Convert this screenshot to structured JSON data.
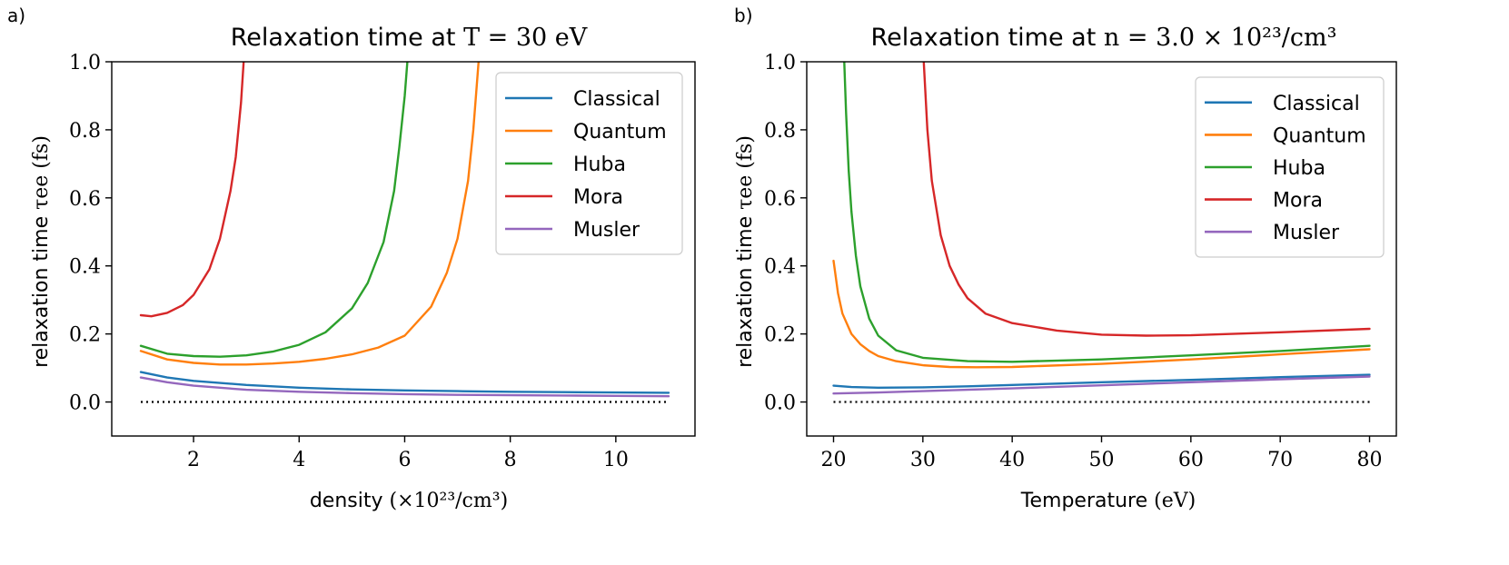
{
  "panels": [
    {
      "panel_label": "a)",
      "title_prefix": "Relaxation time at ",
      "title_math": "T = 30 eV",
      "xlabel_prefix": "density ",
      "xlabel_math": "(×10²³/cm³)",
      "ylabel_prefix": "relaxation time ",
      "ylabel_math": "τee (fs)"
    },
    {
      "panel_label": "b)",
      "title_prefix": "Relaxation time at ",
      "title_math": "n = 3.0 × 10²³/cm³",
      "xlabel_prefix": "Temperature ",
      "xlabel_math": "(eV)",
      "ylabel_prefix": "relaxation time ",
      "ylabel_math": "τee (fs)"
    }
  ],
  "colors": {
    "Classical": "#1f77b4",
    "Quantum": "#ff7f0e",
    "Huba": "#2ca02c",
    "Mora": "#d62728",
    "Musler": "#9467bd",
    "reference": "#000000"
  },
  "chart_data": [
    {
      "type": "line",
      "title": "Relaxation time at T = 30 eV",
      "xlabel": "density (×10²³/cm³)",
      "ylabel": "relaxation time τee (fs)",
      "xlim": [
        0.45,
        11.5
      ],
      "ylim": [
        -0.1,
        1.0
      ],
      "xticks": [
        2,
        4,
        6,
        8,
        10
      ],
      "xtick_labels": [
        "2",
        "4",
        "6",
        "8",
        "10"
      ],
      "yticks": [
        0.0,
        0.2,
        0.4,
        0.6,
        0.8,
        1.0
      ],
      "ytick_labels": [
        "0.0",
        "0.2",
        "0.4",
        "0.6",
        "0.8",
        "1.0"
      ],
      "grid": false,
      "legend": "top-right",
      "legend_entries": [
        "Classical",
        "Quantum",
        "Huba",
        "Mora",
        "Musler"
      ],
      "series": [
        {
          "name": "Classical",
          "x": [
            1.0,
            1.5,
            2,
            3,
            4,
            5,
            6,
            7,
            8,
            9,
            10,
            11
          ],
          "y": [
            0.088,
            0.072,
            0.062,
            0.05,
            0.042,
            0.037,
            0.034,
            0.032,
            0.03,
            0.029,
            0.028,
            0.027
          ]
        },
        {
          "name": "Quantum",
          "x": [
            1.0,
            1.5,
            2,
            2.5,
            3,
            3.5,
            4,
            4.5,
            5,
            5.5,
            6,
            6.5,
            6.8,
            7.0,
            7.2,
            7.3,
            7.4
          ],
          "y": [
            0.15,
            0.125,
            0.115,
            0.11,
            0.11,
            0.113,
            0.118,
            0.127,
            0.14,
            0.16,
            0.195,
            0.28,
            0.38,
            0.48,
            0.65,
            0.8,
            1.0
          ]
        },
        {
          "name": "Huba",
          "x": [
            1.0,
            1.5,
            2,
            2.5,
            3,
            3.5,
            4,
            4.5,
            5,
            5.3,
            5.6,
            5.8,
            5.9,
            6.0,
            6.05
          ],
          "y": [
            0.165,
            0.142,
            0.135,
            0.133,
            0.137,
            0.148,
            0.168,
            0.205,
            0.275,
            0.35,
            0.47,
            0.62,
            0.75,
            0.9,
            1.0
          ]
        },
        {
          "name": "Mora",
          "x": [
            1.0,
            1.2,
            1.5,
            1.8,
            2.0,
            2.3,
            2.5,
            2.7,
            2.8,
            2.9,
            2.95
          ],
          "y": [
            0.255,
            0.252,
            0.262,
            0.285,
            0.315,
            0.39,
            0.48,
            0.62,
            0.72,
            0.88,
            1.0
          ]
        },
        {
          "name": "Musler",
          "x": [
            1.0,
            1.5,
            2,
            3,
            4,
            5,
            6,
            7,
            8,
            9,
            10,
            11
          ],
          "y": [
            0.072,
            0.058,
            0.048,
            0.036,
            0.03,
            0.026,
            0.023,
            0.021,
            0.02,
            0.019,
            0.018,
            0.017
          ]
        },
        {
          "name": "reference",
          "style": "dotted",
          "x": [
            1.0,
            11.0
          ],
          "y": [
            0.0,
            0.0
          ]
        }
      ]
    },
    {
      "type": "line",
      "title": "Relaxation time at n = 3.0 × 10²³/cm³",
      "xlabel": "Temperature (eV)",
      "ylabel": "relaxation time τee (fs)",
      "xlim": [
        17,
        83
      ],
      "ylim": [
        -0.1,
        1.0
      ],
      "xticks": [
        20,
        30,
        40,
        50,
        60,
        70,
        80
      ],
      "xtick_labels": [
        "20",
        "30",
        "40",
        "50",
        "60",
        "70",
        "80"
      ],
      "yticks": [
        0.0,
        0.2,
        0.4,
        0.6,
        0.8,
        1.0
      ],
      "ytick_labels": [
        "0.0",
        "0.2",
        "0.4",
        "0.6",
        "0.8",
        "1.0"
      ],
      "grid": false,
      "legend": "top-right",
      "legend_entries": [
        "Classical",
        "Quantum",
        "Huba",
        "Mora",
        "Musler"
      ],
      "series": [
        {
          "name": "Classical",
          "x": [
            20,
            22,
            25,
            30,
            35,
            40,
            50,
            60,
            70,
            80
          ],
          "y": [
            0.048,
            0.044,
            0.042,
            0.043,
            0.046,
            0.05,
            0.058,
            0.065,
            0.073,
            0.08
          ]
        },
        {
          "name": "Quantum",
          "x": [
            20,
            20.5,
            21,
            22,
            23,
            24,
            25,
            27,
            30,
            33,
            36,
            40,
            50,
            60,
            70,
            80
          ],
          "y": [
            0.415,
            0.32,
            0.26,
            0.2,
            0.17,
            0.15,
            0.135,
            0.12,
            0.108,
            0.103,
            0.102,
            0.103,
            0.112,
            0.125,
            0.14,
            0.155
          ]
        },
        {
          "name": "Huba",
          "x": [
            21.2,
            21.4,
            21.7,
            22,
            22.5,
            23,
            24,
            25,
            27,
            30,
            35,
            40,
            50,
            60,
            70,
            80
          ],
          "y": [
            1.0,
            0.85,
            0.68,
            0.56,
            0.43,
            0.34,
            0.245,
            0.195,
            0.152,
            0.13,
            0.12,
            0.118,
            0.125,
            0.137,
            0.15,
            0.165
          ]
        },
        {
          "name": "Mora",
          "x": [
            30.1,
            30.5,
            31,
            32,
            33,
            34,
            35,
            37,
            40,
            45,
            50,
            55,
            60,
            70,
            80
          ],
          "y": [
            1.0,
            0.8,
            0.65,
            0.49,
            0.4,
            0.345,
            0.305,
            0.26,
            0.232,
            0.21,
            0.198,
            0.195,
            0.196,
            0.205,
            0.215
          ]
        },
        {
          "name": "Musler",
          "x": [
            20,
            25,
            30,
            35,
            40,
            50,
            60,
            70,
            80
          ],
          "y": [
            0.025,
            0.028,
            0.032,
            0.036,
            0.04,
            0.049,
            0.058,
            0.067,
            0.075
          ]
        },
        {
          "name": "reference",
          "style": "dotted",
          "x": [
            20,
            80
          ],
          "y": [
            0.0,
            0.0
          ]
        }
      ]
    }
  ]
}
